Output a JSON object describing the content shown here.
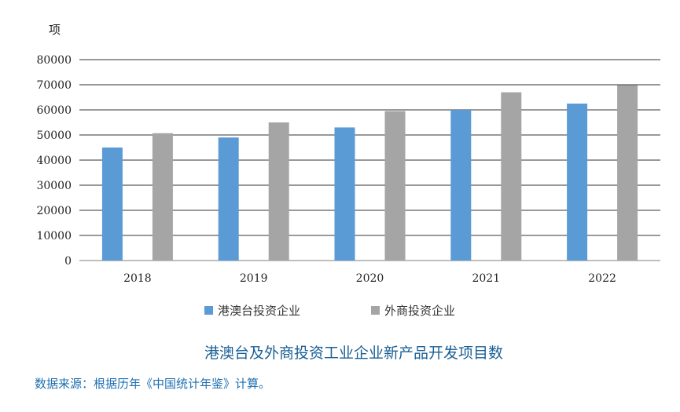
{
  "chart_data": {
    "type": "bar",
    "unit_label": "项",
    "categories": [
      "2018",
      "2019",
      "2020",
      "2021",
      "2022"
    ],
    "series": [
      {
        "name": "港澳台投资企业",
        "color": "#5b9bd5",
        "values": [
          45000,
          49000,
          53000,
          60000,
          62500
        ]
      },
      {
        "name": "外商投资企业",
        "color": "#a5a5a5",
        "values": [
          50700,
          55000,
          59500,
          67000,
          69800
        ]
      }
    ],
    "ylim": [
      0,
      80000
    ],
    "yticks": [
      0,
      10000,
      20000,
      30000,
      40000,
      50000,
      60000,
      70000,
      80000
    ],
    "grid": true,
    "legend_position": "bottom"
  },
  "caption": "港澳台及外商投资工业企业新产品开发项目数",
  "source": "数据来源：根据历年《中国统计年鉴》计算。"
}
